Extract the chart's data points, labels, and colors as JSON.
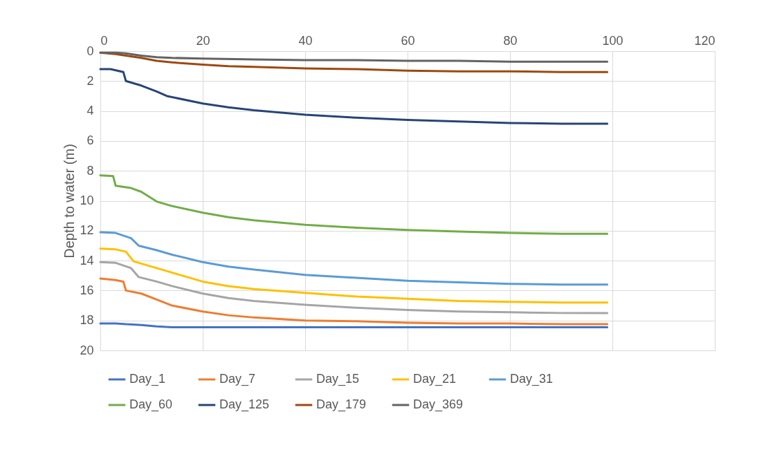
{
  "chart_data": {
    "type": "line",
    "ylabel": "Depth to water (m)",
    "xlim": [
      0,
      120
    ],
    "xticks": [
      0,
      20,
      40,
      60,
      80,
      100,
      120
    ],
    "ylim": [
      20,
      0
    ],
    "yticks": [
      0,
      2,
      4,
      6,
      8,
      10,
      12,
      14,
      16,
      18,
      20
    ],
    "grid": true,
    "legend": "bottom",
    "marker": "none",
    "line_style": "solid",
    "series": [
      {
        "name": "Day_1",
        "color": "#4472c4",
        "x": [
          0,
          3,
          5,
          8,
          11,
          14,
          20,
          30,
          40,
          50,
          60,
          70,
          80,
          90,
          99
        ],
        "values": [
          18.2,
          18.2,
          18.25,
          18.3,
          18.4,
          18.45,
          18.45,
          18.45,
          18.45,
          18.45,
          18.45,
          18.45,
          18.45,
          18.45,
          18.45
        ]
      },
      {
        "name": "Day_7",
        "color": "#ed7d31",
        "x": [
          0,
          3,
          4.5,
          5,
          8,
          11,
          14,
          20,
          25,
          30,
          40,
          50,
          60,
          70,
          80,
          90,
          99
        ],
        "values": [
          15.2,
          15.3,
          15.4,
          16.0,
          16.2,
          16.6,
          17.0,
          17.4,
          17.65,
          17.8,
          18.0,
          18.05,
          18.15,
          18.2,
          18.2,
          18.25,
          18.25
        ]
      },
      {
        "name": "Day_15",
        "color": "#a5a5a5",
        "x": [
          0,
          3,
          6,
          7.5,
          11,
          14,
          20,
          25,
          30,
          40,
          50,
          60,
          70,
          80,
          90,
          99
        ],
        "values": [
          14.1,
          14.15,
          14.5,
          15.1,
          15.4,
          15.7,
          16.2,
          16.5,
          16.7,
          16.95,
          17.15,
          17.3,
          17.4,
          17.45,
          17.5,
          17.5
        ]
      },
      {
        "name": "Day_21",
        "color": "#ffc000",
        "x": [
          0,
          3,
          5,
          6.5,
          11,
          14,
          20,
          25,
          30,
          40,
          50,
          60,
          70,
          80,
          90,
          99
        ],
        "values": [
          13.2,
          13.25,
          13.4,
          14.05,
          14.5,
          14.8,
          15.4,
          15.7,
          15.9,
          16.15,
          16.4,
          16.55,
          16.7,
          16.75,
          16.8,
          16.8
        ]
      },
      {
        "name": "Day_31",
        "color": "#5b9bd5",
        "x": [
          0,
          3,
          6,
          7.5,
          11,
          14,
          20,
          25,
          30,
          40,
          50,
          60,
          70,
          80,
          90,
          99
        ],
        "values": [
          12.1,
          12.15,
          12.5,
          13.0,
          13.3,
          13.6,
          14.1,
          14.4,
          14.6,
          14.95,
          15.15,
          15.35,
          15.45,
          15.55,
          15.6,
          15.6
        ]
      },
      {
        "name": "Day_60",
        "color": "#70ad47",
        "x": [
          0,
          2.5,
          3,
          6,
          8,
          11,
          14,
          20,
          25,
          30,
          40,
          50,
          60,
          70,
          80,
          90,
          99
        ],
        "values": [
          8.3,
          8.35,
          9.0,
          9.15,
          9.4,
          10.05,
          10.35,
          10.8,
          11.1,
          11.3,
          11.6,
          11.8,
          11.95,
          12.05,
          12.15,
          12.2,
          12.2
        ]
      },
      {
        "name": "Day_125",
        "color": "#264478",
        "x": [
          0,
          2,
          4.5,
          5,
          8,
          11,
          13,
          20,
          25,
          30,
          40,
          50,
          60,
          70,
          80,
          90,
          99
        ],
        "values": [
          1.2,
          1.2,
          1.4,
          2.0,
          2.3,
          2.7,
          3.0,
          3.5,
          3.75,
          3.95,
          4.25,
          4.45,
          4.6,
          4.7,
          4.8,
          4.85,
          4.85
        ]
      },
      {
        "name": "Day_179",
        "color": "#9e480e",
        "x": [
          0,
          3,
          5,
          8,
          11,
          14,
          20,
          25,
          30,
          40,
          50,
          60,
          70,
          80,
          90,
          99
        ],
        "values": [
          0.1,
          0.2,
          0.3,
          0.45,
          0.65,
          0.75,
          0.9,
          1.0,
          1.05,
          1.15,
          1.2,
          1.3,
          1.35,
          1.35,
          1.4,
          1.4
        ]
      },
      {
        "name": "Day_369",
        "color": "#636363",
        "x": [
          0,
          3,
          5,
          8,
          11,
          14,
          20,
          30,
          40,
          50,
          60,
          70,
          80,
          90,
          99
        ],
        "values": [
          0.1,
          0.1,
          0.15,
          0.3,
          0.4,
          0.45,
          0.5,
          0.55,
          0.6,
          0.6,
          0.65,
          0.65,
          0.7,
          0.7,
          0.7
        ]
      }
    ]
  }
}
